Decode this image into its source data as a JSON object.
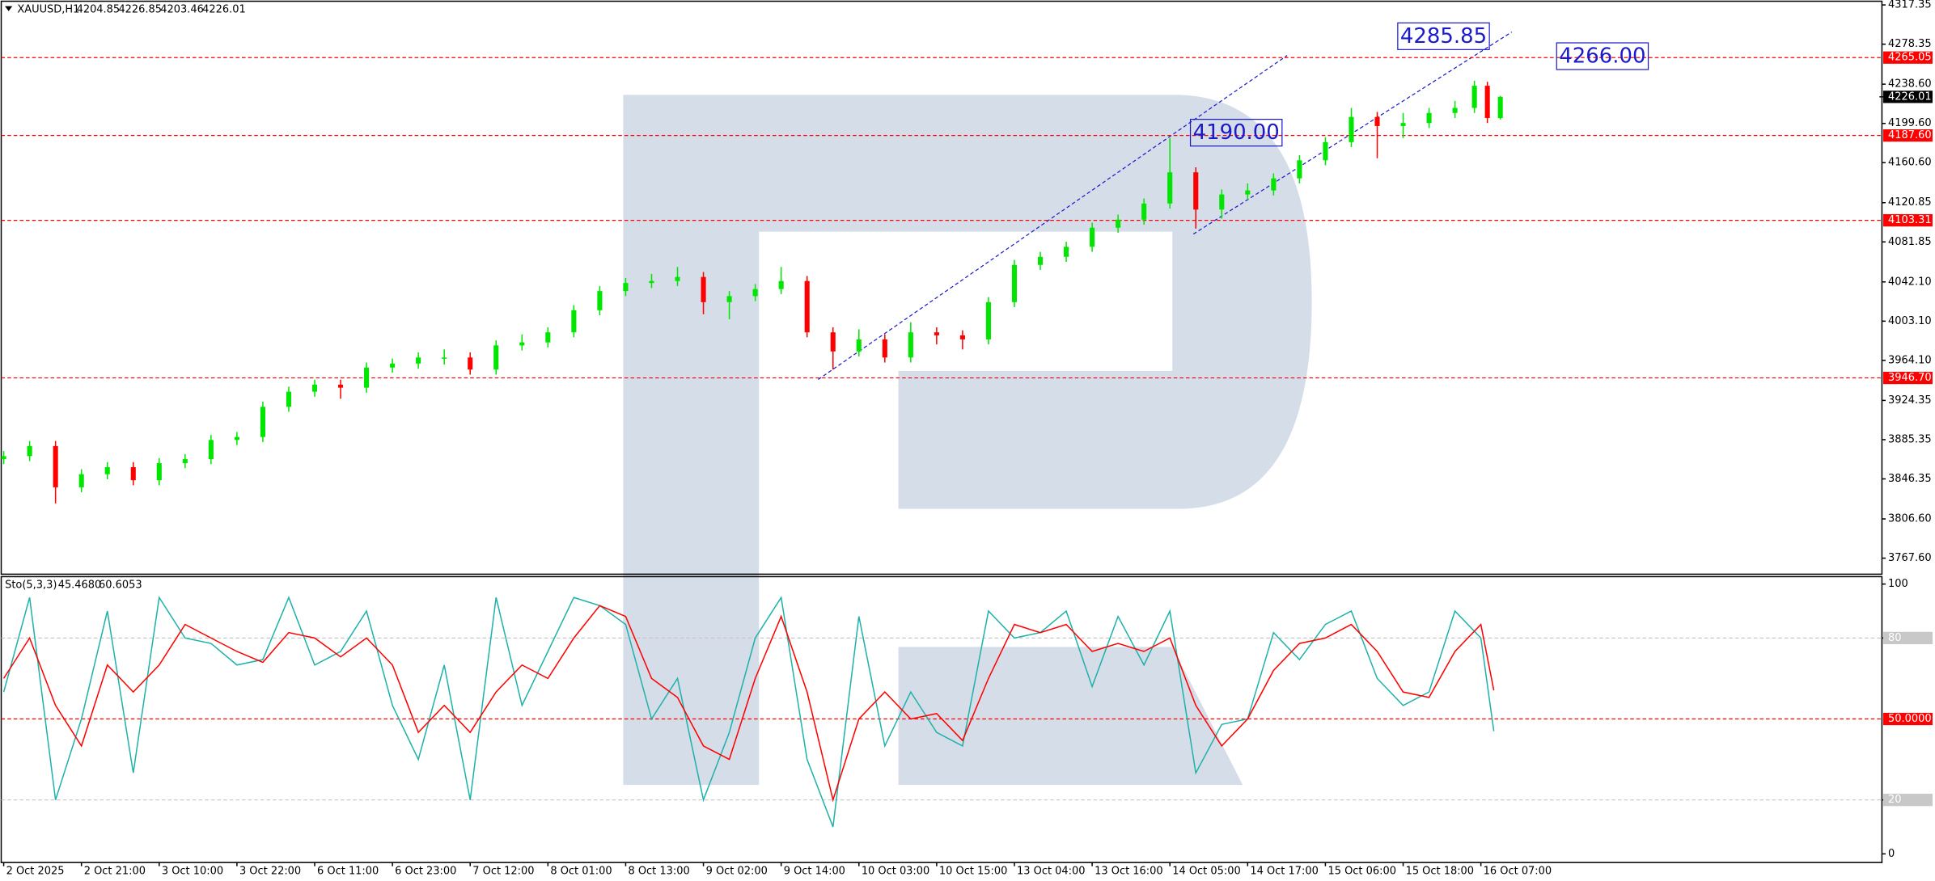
{
  "chart_data": [
    {
      "type": "candlestick",
      "symbol": "XAUUSD,H1",
      "up_color": "#00e600",
      "down_color": "#ff0000",
      "x": [
        0,
        4,
        8,
        12,
        16,
        20,
        24,
        28,
        32,
        36,
        40,
        44,
        48,
        52,
        56,
        60,
        64,
        68,
        72,
        76,
        80,
        84,
        88,
        92,
        96,
        100,
        104,
        108,
        112,
        116,
        120,
        124,
        128,
        132,
        136,
        140,
        144,
        148,
        152,
        156,
        160,
        164,
        168,
        172,
        176,
        180,
        184,
        188,
        192,
        196,
        200,
        204,
        208,
        212,
        216,
        220,
        224,
        227,
        229,
        231
      ],
      "open": [
        3866,
        3869,
        3879,
        3838,
        3851,
        3858,
        3845,
        3862,
        3866,
        3885,
        3888,
        3918,
        3933,
        3940,
        3937,
        3957,
        3961,
        3967,
        3967,
        3955,
        3979,
        3982,
        3992,
        4014,
        4033,
        4041,
        4043,
        4047,
        4022,
        4028,
        4035,
        4043,
        3992,
        3973,
        3985,
        3967,
        3992,
        3989,
        3985,
        4022,
        4059,
        4067,
        4077,
        4096,
        4104,
        4120,
        4151,
        4114,
        4129,
        4133,
        4145,
        4163,
        4181,
        4206,
        4197,
        4200,
        4210,
        4215,
        4237,
        4204.85
      ],
      "high": [
        3874,
        3884,
        3884,
        3856,
        3863,
        3863,
        3867,
        3871,
        3890,
        3893,
        3923,
        3938,
        3945,
        3945,
        3962,
        3966,
        3972,
        3975,
        3972,
        3984,
        3990,
        3997,
        4019,
        4038,
        4046,
        4050,
        4057,
        4052,
        4033,
        4040,
        4057,
        4048,
        3997,
        3995,
        3990,
        4002,
        3997,
        3994,
        4027,
        4064,
        4072,
        4082,
        4101,
        4109,
        4125,
        4185,
        4156,
        4134,
        4140,
        4150,
        4168,
        4186,
        4215,
        4211,
        4210,
        4215,
        4222,
        4242,
        4241,
        4226.85
      ],
      "low": [
        3861,
        3864,
        3822,
        3833,
        3846,
        3840,
        3840,
        3857,
        3861,
        3880,
        3883,
        3913,
        3928,
        3926,
        3932,
        3952,
        3956,
        3960,
        3950,
        3950,
        3974,
        3977,
        3987,
        4009,
        4028,
        4036,
        4038,
        4010,
        4005,
        4023,
        4030,
        3987,
        3955,
        3968,
        3962,
        3962,
        3980,
        3975,
        3980,
        4017,
        4054,
        4062,
        4072,
        4091,
        4099,
        4115,
        4095,
        4105,
        4124,
        4128,
        4140,
        4158,
        4176,
        4165,
        4185,
        4195,
        4205,
        4210,
        4200,
        4203.46
      ],
      "close": [
        3869,
        3879,
        3838,
        3851,
        3858,
        3845,
        3862,
        3866,
        3885,
        3888,
        3918,
        3933,
        3940,
        3937,
        3957,
        3961,
        3967,
        3967,
        3955,
        3979,
        3982,
        3992,
        4014,
        4033,
        4041,
        4043,
        4047,
        4022,
        4028,
        4035,
        4043,
        3992,
        3973,
        3985,
        3967,
        3992,
        3989,
        3985,
        4022,
        4059,
        4067,
        4077,
        4096,
        4104,
        4120,
        4151,
        4114,
        4129,
        4133,
        4145,
        4163,
        4181,
        4206,
        4197,
        4200,
        4210,
        4215,
        4237,
        4205,
        4226.01
      ],
      "xlim": [
        -0.38,
        289.9
      ],
      "ylim": [
        3751.66,
        4321.02
      ],
      "yticks": [
        4317.35,
        4278.35,
        {
          "value": 4238.6,
          "label": "4238.60"
        },
        {
          "value": 4199.6,
          "label": "4199.60"
        },
        {
          "value": 4160.6,
          "label": "4160.60"
        },
        4120.85,
        4081.85,
        {
          "value": 4042.1,
          "label": "4042.10"
        },
        {
          "value": 4003.1,
          "label": "4003.10"
        },
        {
          "value": 3964.1,
          "label": "3964.10"
        },
        3924.35,
        3885.35,
        3846.35,
        {
          "value": 3806.6,
          "label": "3806.60"
        },
        {
          "value": 3767.6,
          "label": "3767.60"
        }
      ],
      "levels": [
        {
          "value": 4265.05,
          "color": "#ff0000"
        },
        {
          "value": 4187.6,
          "label": "4187.60",
          "color": "#ff0000"
        },
        {
          "value": 4103.31,
          "color": "#ff0000"
        },
        {
          "value": 3946.7,
          "label": "3946.70",
          "color": "#ff0000"
        }
      ],
      "annotations": [
        {
          "value": 4285.85,
          "x": 229.5,
          "anchor": "end"
        },
        {
          "value": 4266,
          "label": "4266.00",
          "x": 239.5,
          "anchor": "start"
        },
        {
          "value": 4190,
          "label": "4190.00",
          "x": 197.5,
          "anchor": "end"
        }
      ]
    },
    {
      "type": "line",
      "name": "Sto(5,3,3)",
      "readout": [
        {
          "value": 45.468,
          "label": "45.4680"
        },
        60.6053
      ],
      "x": [
        0,
        4,
        8,
        12,
        16,
        20,
        24,
        28,
        32,
        36,
        40,
        44,
        48,
        52,
        56,
        60,
        64,
        68,
        72,
        76,
        80,
        84,
        88,
        92,
        96,
        100,
        104,
        108,
        112,
        116,
        120,
        124,
        128,
        132,
        136,
        140,
        144,
        148,
        152,
        156,
        160,
        164,
        168,
        172,
        176,
        180,
        184,
        188,
        192,
        196,
        200,
        204,
        208,
        212,
        216,
        220,
        224,
        228,
        230
      ],
      "series": [
        {
          "color": "#20b2aa",
          "values": [
            60,
            95,
            20,
            50,
            90,
            30,
            95,
            80,
            78,
            70,
            72,
            95,
            70,
            75,
            90,
            55,
            35,
            70,
            20,
            95,
            55,
            75,
            95,
            92,
            85,
            50,
            65,
            20,
            45,
            80,
            95,
            35,
            10,
            88,
            40,
            60,
            45,
            40,
            90,
            80,
            82,
            90,
            62,
            88,
            70,
            90,
            30,
            48,
            50,
            82,
            72,
            85,
            90,
            65,
            55,
            60,
            90,
            80,
            45.468
          ]
        },
        {
          "color": "#ff0000",
          "values": [
            65,
            80,
            55,
            40,
            70,
            60,
            70,
            85,
            80,
            75,
            71,
            82,
            80,
            73,
            80,
            70,
            45,
            55,
            45,
            60,
            70,
            65,
            80,
            92,
            88,
            65,
            58,
            40,
            35,
            65,
            88,
            60,
            20,
            50,
            60,
            50,
            52,
            42,
            65,
            85,
            82,
            85,
            75,
            78,
            75,
            80,
            55,
            40,
            50,
            68,
            78,
            80,
            85,
            75,
            60,
            58,
            75,
            85,
            60.6053
          ]
        }
      ],
      "xlim": [
        -0.38,
        289.9
      ],
      "ylim": [
        -3.2,
        102.74
      ],
      "yticks": [
        0,
        20,
        80,
        100
      ],
      "levels": [
        {
          "value": 80,
          "color": "#c8c8c8"
        },
        {
          "value": 50,
          "label": "50.0000",
          "color": "#ff0000"
        },
        {
          "value": 20,
          "color": "#c8c8c8"
        }
      ],
      "xticks": [
        {
          "value": 0,
          "label": "2 Oct 2025"
        },
        {
          "value": 12,
          "label": "2 Oct 21:00"
        },
        {
          "value": 24,
          "label": "3 Oct 10:00"
        },
        {
          "value": 36,
          "label": "3 Oct 22:00"
        },
        {
          "value": 48,
          "label": "6 Oct 11:00"
        },
        {
          "value": 60,
          "label": "6 Oct 23:00"
        },
        {
          "value": 72,
          "label": "7 Oct 12:00"
        },
        {
          "value": 84,
          "label": "8 Oct 01:00"
        },
        {
          "value": 96,
          "label": "8 Oct 13:00"
        },
        {
          "value": 108,
          "label": "9 Oct 02:00"
        },
        {
          "value": 120,
          "label": "9 Oct 14:00"
        },
        {
          "value": 132,
          "label": "10 Oct 03:00"
        },
        {
          "value": 144,
          "label": "10 Oct 15:00"
        },
        {
          "value": 156,
          "label": "13 Oct 04:00"
        },
        {
          "value": 168,
          "label": "13 Oct 16:00"
        },
        {
          "value": 180,
          "label": "14 Oct 05:00"
        },
        {
          "value": 192,
          "label": "14 Oct 17:00"
        },
        {
          "value": 204,
          "label": "15 Oct 06:00"
        },
        {
          "value": 216,
          "label": "15 Oct 18:00"
        },
        {
          "value": 228,
          "label": "16 Oct 07:00"
        }
      ]
    }
  ]
}
